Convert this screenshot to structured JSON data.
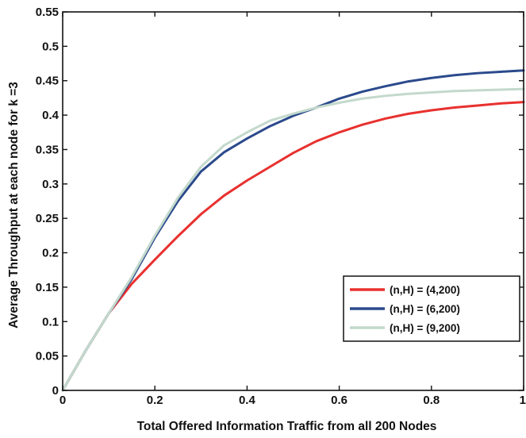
{
  "chart_data": {
    "type": "line",
    "title": "",
    "xlabel": "Total Offered Information Traffic from all 200 Nodes",
    "ylabel": "Average Throughput at each node for k  =3",
    "xlim": [
      0,
      1
    ],
    "ylim": [
      0,
      0.55
    ],
    "x_ticks": [
      0,
      0.2,
      0.4,
      0.6,
      0.8,
      1
    ],
    "x_tick_labels": [
      "0",
      "0.2",
      "0.4",
      "0.6",
      "0.8",
      "1"
    ],
    "y_ticks": [
      0,
      0.05,
      0.1,
      0.15,
      0.2,
      0.25,
      0.3,
      0.35,
      0.4,
      0.45,
      0.5,
      0.55
    ],
    "y_tick_labels": [
      "0",
      "0.05",
      "0.1",
      "0.15",
      "0.2",
      "0.25",
      "0.3",
      "0.35",
      "0.4",
      "0.45",
      "0.5",
      "0.55"
    ],
    "grid": false,
    "legend_position": "bottom-right",
    "x": [
      0,
      0.05,
      0.1,
      0.15,
      0.2,
      0.25,
      0.3,
      0.35,
      0.4,
      0.45,
      0.5,
      0.55,
      0.6,
      0.65,
      0.7,
      0.75,
      0.8,
      0.85,
      0.9,
      0.95,
      1.0
    ],
    "series": [
      {
        "name": "(n,H) = (4,200)",
        "color": "#e8312f",
        "values": [
          0,
          0.058,
          0.112,
          0.155,
          0.19,
          0.224,
          0.256,
          0.283,
          0.305,
          0.325,
          0.345,
          0.362,
          0.375,
          0.386,
          0.395,
          0.402,
          0.407,
          0.411,
          0.414,
          0.417,
          0.419
        ]
      },
      {
        "name": "(n,H) = (6,200)",
        "color": "#2b4a8c",
        "values": [
          0,
          0.058,
          0.112,
          0.162,
          0.222,
          0.275,
          0.318,
          0.346,
          0.366,
          0.384,
          0.399,
          0.411,
          0.424,
          0.434,
          0.442,
          0.449,
          0.454,
          0.458,
          0.461,
          0.463,
          0.465
        ]
      },
      {
        "name": "(n,H) = (9,200)",
        "color": "#c3d9cc",
        "values": [
          0,
          0.058,
          0.112,
          0.165,
          0.225,
          0.28,
          0.325,
          0.356,
          0.375,
          0.392,
          0.402,
          0.411,
          0.418,
          0.424,
          0.428,
          0.431,
          0.433,
          0.435,
          0.436,
          0.437,
          0.438
        ]
      }
    ]
  }
}
